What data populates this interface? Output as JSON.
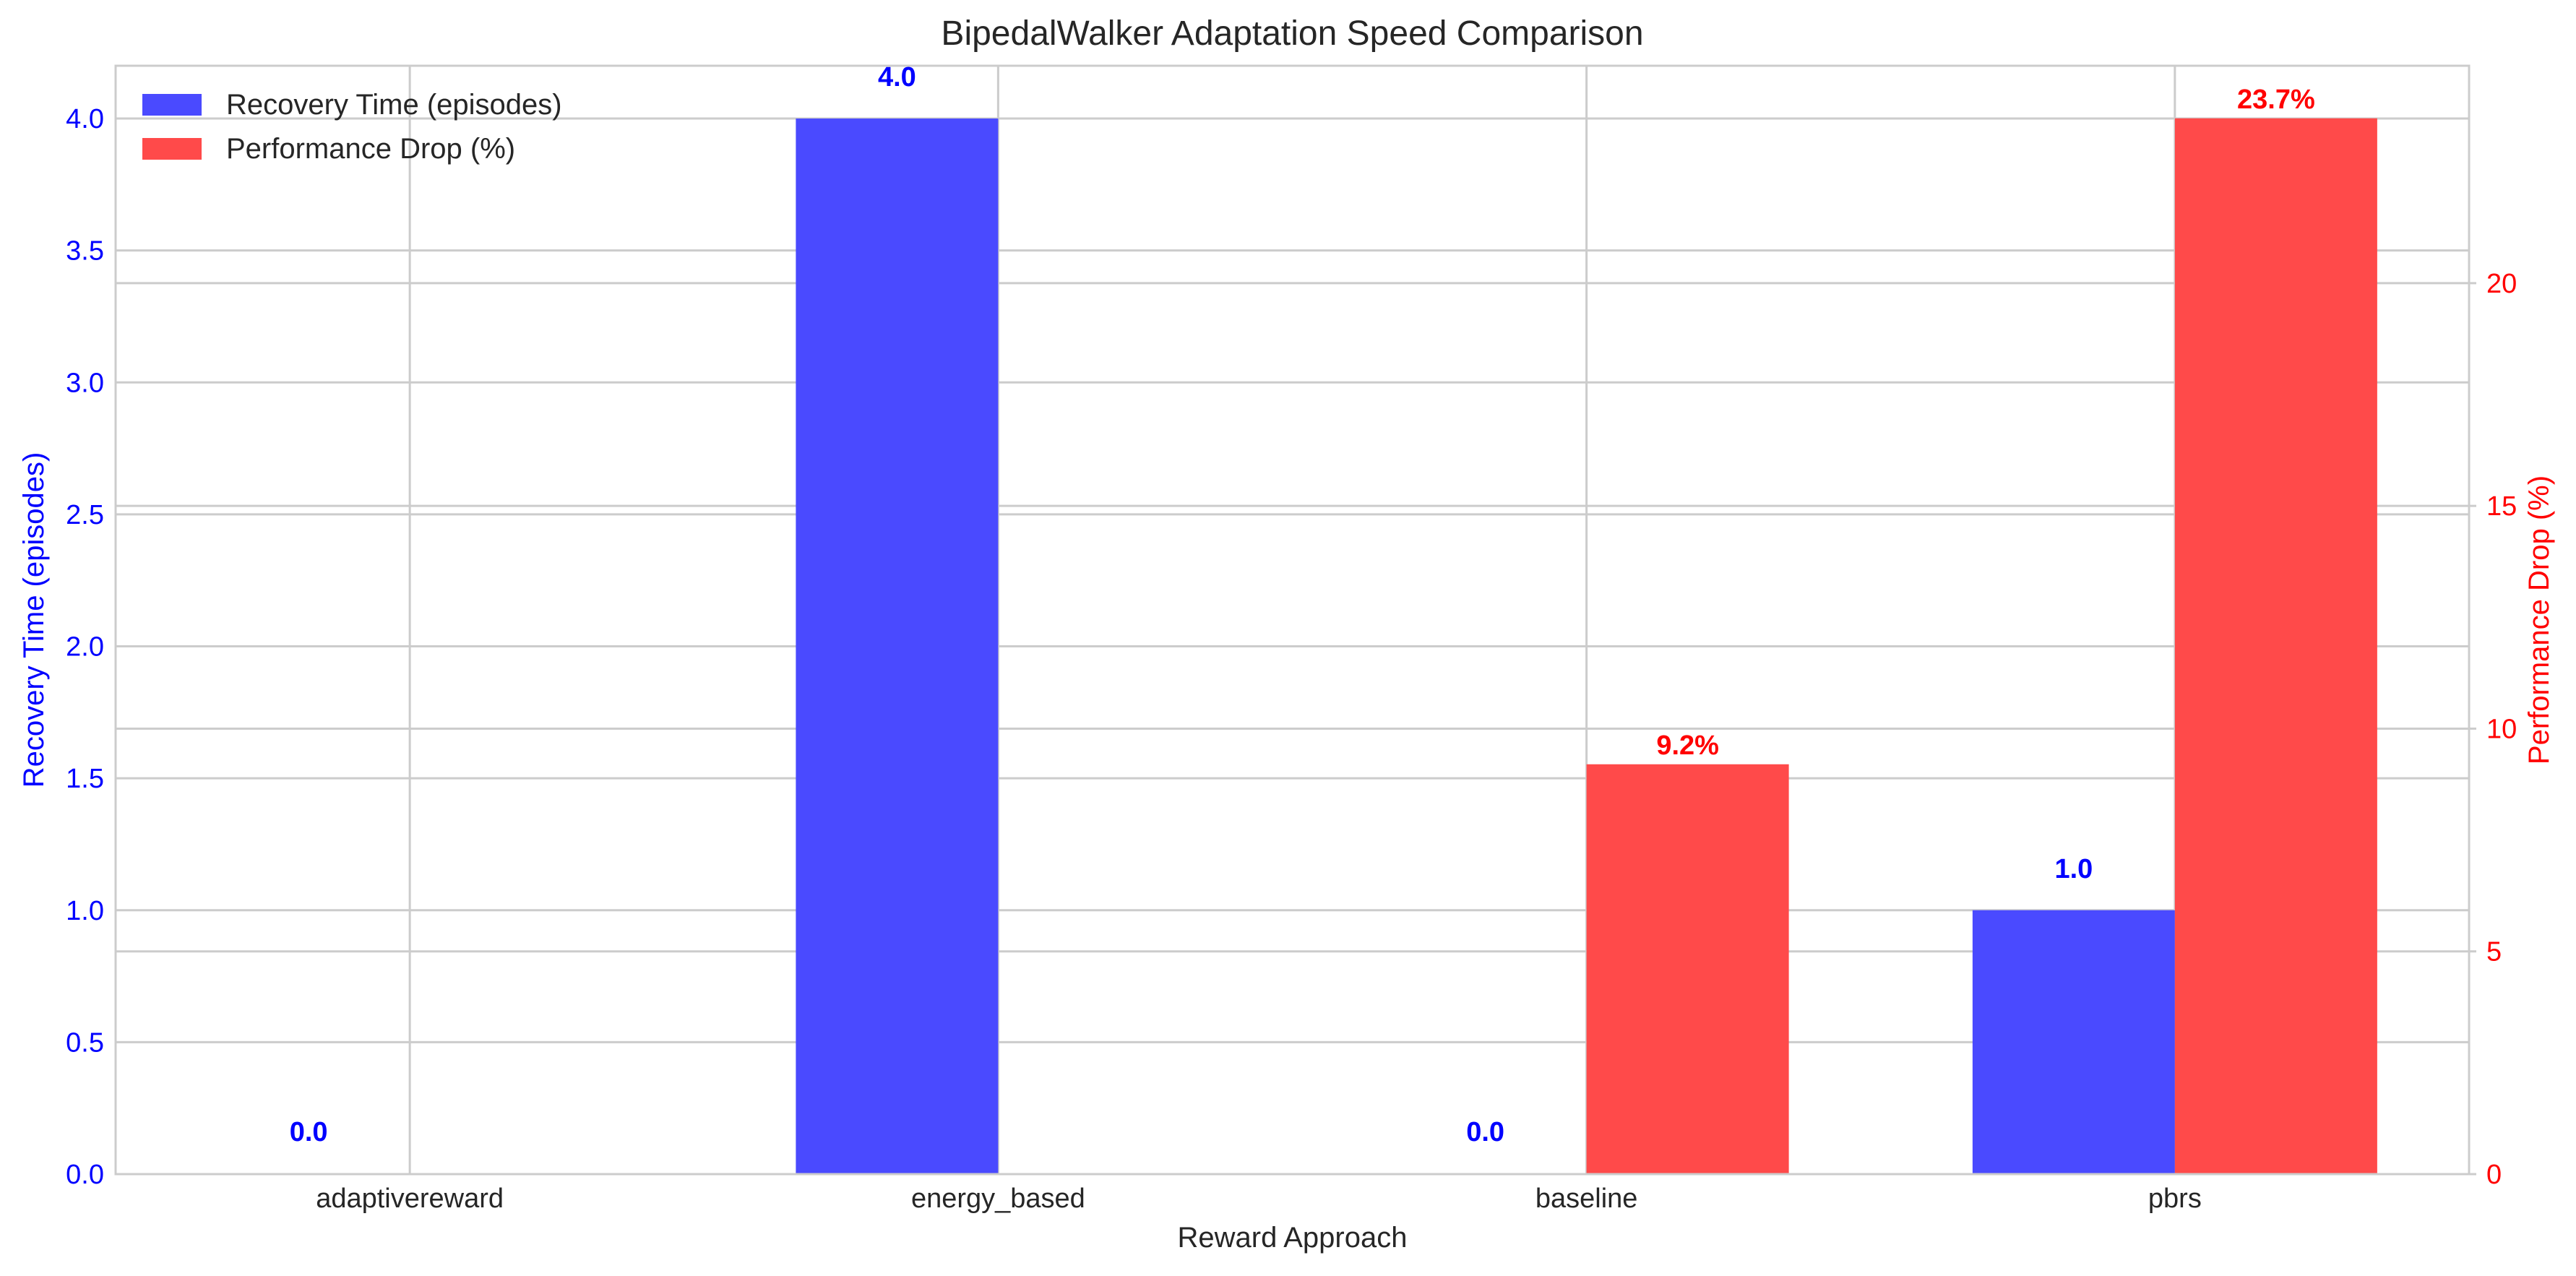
{
  "chart_data": {
    "type": "bar",
    "title": "BipedalWalker Adaptation Speed Comparison",
    "xlabel": "Reward Approach",
    "categories": [
      "adaptivereward",
      "energy_based",
      "baseline",
      "pbrs"
    ],
    "grid": true,
    "legend_position": "top-left",
    "axes": {
      "left": {
        "label": "Recovery Time (episodes)",
        "ylim": [
          0,
          4.2
        ],
        "ticks": [
          "0.0",
          "0.5",
          "1.0",
          "1.5",
          "2.0",
          "2.5",
          "3.0",
          "3.5",
          "4.0"
        ],
        "color": "#0000ff"
      },
      "right": {
        "label": "Performance Drop (%)",
        "ylim": [
          0,
          24.88
        ],
        "ticks": [
          "0",
          "5",
          "10",
          "15",
          "20"
        ],
        "color": "#ff0000"
      }
    },
    "series": [
      {
        "name": "Recovery Time (episodes)",
        "axis": "left",
        "color": "#4a4aff",
        "values": [
          0.0,
          4.0,
          0.0,
          1.0
        ],
        "labels": [
          "0.0",
          "4.0",
          "0.0",
          "1.0"
        ],
        "label_color": "#0000ff"
      },
      {
        "name": "Performance Drop (%)",
        "axis": "right",
        "color": "#ff4a4a",
        "values": [
          0.0,
          0.0,
          9.2,
          23.7
        ],
        "labels": [
          "",
          "",
          "9.2%",
          "23.7%"
        ],
        "label_color": "#ff0000"
      }
    ]
  }
}
